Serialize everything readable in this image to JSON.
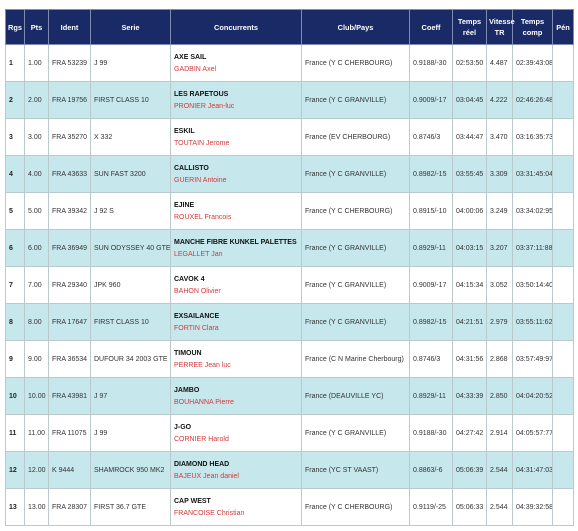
{
  "table": {
    "headers": {
      "rank": "Rgs",
      "pts": "Pts",
      "ident": "Ident",
      "serie": "Serie",
      "competitors": "Concurrents",
      "club": "Club/Pays",
      "coeff": "Coeff",
      "real_time_1": "Temps",
      "real_time_2": "réel",
      "speed_1": "Vitesse",
      "speed_2": "TR",
      "comp_time_1": "Temps",
      "comp_time_2": "comp",
      "penalty": "Pén"
    },
    "rows": [
      {
        "rank": "1",
        "pts": "1.00",
        "ident": "FRA 53239",
        "serie": "J 99",
        "boat": "AXE SAIL",
        "crew": "GADBIN Axel",
        "club": "France (Y C CHERBOURG)",
        "coeff": "0.9188/-30",
        "real": "02:53:50",
        "speed": "4.487",
        "comp": "02:39:43:08",
        "pen": ""
      },
      {
        "rank": "2",
        "pts": "2.00",
        "ident": "FRA 19756",
        "serie": "FIRST CLASS 10",
        "boat": "LES RAPETOUS",
        "crew": "PRONIER Jean-luc",
        "club": "France (Y C GRANVILLE)",
        "coeff": "0.9009/-17",
        "real": "03:04:45",
        "speed": "4.222",
        "comp": "02:46:26:48",
        "pen": ""
      },
      {
        "rank": "3",
        "pts": "3.00",
        "ident": "FRA 35270",
        "serie": "X 332",
        "boat": "ESKIL",
        "crew": "TOUTAIN Jerome",
        "club": "France (EV CHERBOURG)",
        "coeff": "0.8746/3",
        "real": "03:44:47",
        "speed": "3.470",
        "comp": "03:16:35:73",
        "pen": ""
      },
      {
        "rank": "4",
        "pts": "4.00",
        "ident": "FRA 43633",
        "serie": "SUN FAST 3200",
        "boat": "CALLISTO",
        "crew": "GUERIN Antoine",
        "club": "France (Y C GRANVILLE)",
        "coeff": "0.8982/-15",
        "real": "03:55:45",
        "speed": "3.309",
        "comp": "03:31:45:04",
        "pen": ""
      },
      {
        "rank": "5",
        "pts": "5.00",
        "ident": "FRA 39342",
        "serie": "J 92 S",
        "boat": "EJINE",
        "crew": "ROUXEL Francois",
        "club": "France (Y C CHERBOURG)",
        "coeff": "0.8915/-10",
        "real": "04:00:06",
        "speed": "3.249",
        "comp": "03:34:02:95",
        "pen": ""
      },
      {
        "rank": "6",
        "pts": "6.00",
        "ident": "FRA 36949",
        "serie": "SUN ODYSSEY 40 GTE",
        "boat": "MANCHE FIBRE KUNKEL PALETTES",
        "crew": "LEGALLET Jan",
        "club": "France (Y C GRANVILLE)",
        "coeff": "0.8929/-11",
        "real": "04:03:15",
        "speed": "3.207",
        "comp": "03:37:11:88",
        "pen": ""
      },
      {
        "rank": "7",
        "pts": "7.00",
        "ident": "FRA 29340",
        "serie": "JPK 960",
        "boat": "CAVOK 4",
        "crew": "BAHON Olivier",
        "club": "France (Y C GRANVILLE)",
        "coeff": "0.9009/-17",
        "real": "04:15:34",
        "speed": "3.052",
        "comp": "03:50:14:40",
        "pen": ""
      },
      {
        "rank": "8",
        "pts": "8.00",
        "ident": "FRA 17647",
        "serie": "FIRST CLASS 10",
        "boat": "EXSAILANCE",
        "crew": "FORTIN Clara",
        "club": "France (Y C GRANVILLE)",
        "coeff": "0.8982/-15",
        "real": "04:21:51",
        "speed": "2.979",
        "comp": "03:55:11:62",
        "pen": ""
      },
      {
        "rank": "9",
        "pts": "9.00",
        "ident": "FRA 36534",
        "serie": "DUFOUR 34 2003 GTE",
        "boat": "TIMOUN",
        "crew": "PERREE Jean luc",
        "club": "France (C N Marine Cherbourg)",
        "coeff": "0.8746/3",
        "real": "04:31:56",
        "speed": "2.868",
        "comp": "03:57:49:97",
        "pen": ""
      },
      {
        "rank": "10",
        "pts": "10.00",
        "ident": "FRA 43981",
        "serie": "J 97",
        "boat": "JAMBO",
        "crew": "BOUHANNA Pierre",
        "club": "France (DEAUVILLE YC)",
        "coeff": "0.8929/-11",
        "real": "04:33:39",
        "speed": "2.850",
        "comp": "04:04:20:52",
        "pen": ""
      },
      {
        "rank": "11",
        "pts": "11.00",
        "ident": "FRA 11075",
        "serie": "J 99",
        "boat": "J-GO",
        "crew": "CORNIER Harold",
        "club": "France (Y C GRANVILLE)",
        "coeff": "0.9188/-30",
        "real": "04:27:42",
        "speed": "2.914",
        "comp": "04:05:57:77",
        "pen": ""
      },
      {
        "rank": "12",
        "pts": "12.00",
        "ident": "K 9444",
        "serie": "SHAMROCK 950 MK2",
        "boat": "DIAMOND HEAD",
        "crew": "BAJEUX Jean daniel",
        "club": "France (YC ST VAAST)",
        "coeff": "0.8863/-6",
        "real": "05:06:39",
        "speed": "2.544",
        "comp": "04:31:47:03",
        "pen": ""
      },
      {
        "rank": "13",
        "pts": "13.00",
        "ident": "FRA 28307",
        "serie": "FIRST 36.7 GTE",
        "boat": "CAP WEST",
        "crew": "FRANCOISE Christian",
        "club": "France (Y C CHERBOURG)",
        "coeff": "0.9119/-25",
        "real": "05:06:33",
        "speed": "2.544",
        "comp": "04:39:32:58",
        "pen": ""
      }
    ]
  },
  "colors": {
    "header_bg": "#1a2a66",
    "row_alt_bg": "#c6e7ec",
    "crew_text": "#d23a3a"
  }
}
